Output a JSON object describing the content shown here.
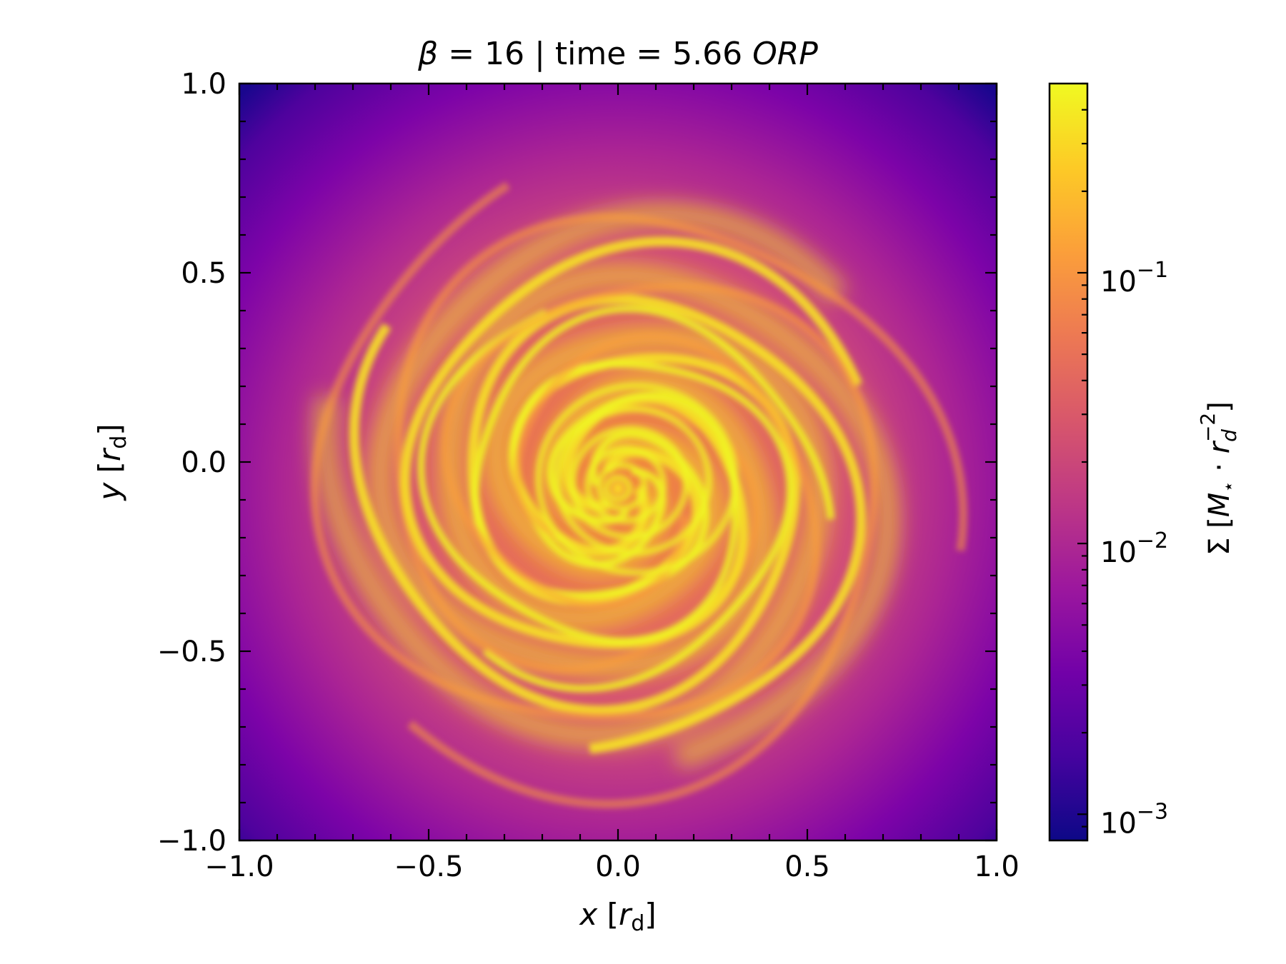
{
  "chart_data": {
    "type": "heatmap",
    "title_parts": {
      "beta_symbol": "β",
      "beta_rest": " = 16 | time = 5.66 ",
      "time_unit": "ORP"
    },
    "xlabel": {
      "var": "x",
      "unit_open": " [",
      "unit_var": "r",
      "unit_sub": "d",
      "unit_close": "]"
    },
    "ylabel": {
      "var": "y",
      "unit_open": " [",
      "unit_var": "r",
      "unit_sub": "d",
      "unit_close": "]"
    },
    "xlim": [
      -1.0,
      1.0
    ],
    "ylim": [
      -1.0,
      1.0
    ],
    "xticks": [
      -1.0,
      -0.5,
      0.0,
      0.5,
      1.0
    ],
    "xtick_labels": [
      "−1.0",
      "−0.5",
      "0.0",
      "0.5",
      "1.0"
    ],
    "yticks": [
      1.0,
      0.5,
      0.0,
      -0.5,
      -1.0
    ],
    "ytick_labels": [
      "1.0",
      "0.5",
      "0.0",
      "−0.5",
      "−1.0"
    ],
    "minor_tick_step": 0.1,
    "grid": false,
    "colormap": "plasma",
    "colorbar": {
      "scale": "log",
      "range": [
        0.0008,
        0.5
      ],
      "ticks": [
        0.001,
        0.01,
        0.1
      ],
      "tick_labels": [
        {
          "base": "10",
          "exp": "−3"
        },
        {
          "base": "10",
          "exp": "−2"
        },
        {
          "base": "10",
          "exp": "−1"
        }
      ],
      "label": {
        "sym": "Σ",
        "open": " [",
        "m": "M",
        "star": "⋆",
        "dot": " · ",
        "r": "r",
        "sub": "d",
        "sup": "−2",
        "close": "]"
      }
    },
    "features": {
      "center": [
        0.0,
        -0.07
      ],
      "center_value": 0.3,
      "arm_value": 0.35,
      "edge_value": 0.001,
      "spiral_arms": 3
    },
    "colormap_stops": [
      "#0d0887",
      "#46039f",
      "#7201a8",
      "#9c179e",
      "#bd3786",
      "#d8576b",
      "#ed7953",
      "#fb9f3a",
      "#fdca26",
      "#f0f921"
    ]
  }
}
